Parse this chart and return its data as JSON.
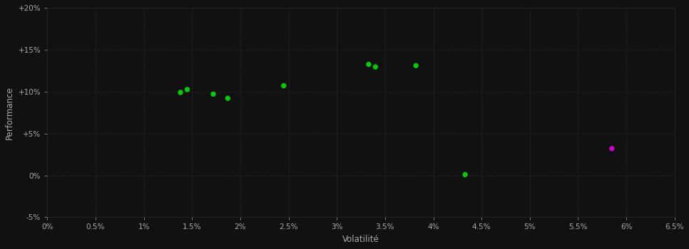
{
  "green_points": [
    [
      0.0138,
      0.099
    ],
    [
      0.0145,
      0.1025
    ],
    [
      0.0172,
      0.097
    ],
    [
      0.0187,
      0.092
    ],
    [
      0.0245,
      0.107
    ],
    [
      0.0333,
      0.1325
    ],
    [
      0.034,
      0.1295
    ],
    [
      0.0382,
      0.131
    ],
    [
      0.0433,
      0.001
    ]
  ],
  "magenta_points": [
    [
      0.0585,
      0.032
    ]
  ],
  "xlim": [
    0.0,
    0.065
  ],
  "ylim": [
    -0.05,
    0.2
  ],
  "xticks": [
    0.0,
    0.005,
    0.01,
    0.015,
    0.02,
    0.025,
    0.03,
    0.035,
    0.04,
    0.045,
    0.05,
    0.055,
    0.06,
    0.065
  ],
  "yticks": [
    -0.05,
    0.0,
    0.05,
    0.1,
    0.15,
    0.2
  ],
  "ytick_labels": [
    "-5%",
    "0%",
    "+5%",
    "+10%",
    "+15%",
    "+20%"
  ],
  "xtick_labels": [
    "0%",
    "0.5%",
    "1%",
    "1.5%",
    "2%",
    "2.5%",
    "3%",
    "3.5%",
    "4%",
    "4.5%",
    "5%",
    "5.5%",
    "6%",
    "6.5%"
  ],
  "xlabel": "Volatilité",
  "ylabel": "Performance",
  "background_color": "#111111",
  "plot_bg_color": "#111111",
  "grid_color": "#2a2a2a",
  "green_color": "#00cc00",
  "magenta_color": "#cc00cc",
  "tick_color": "#aaaaaa",
  "label_color": "#aaaaaa",
  "marker_size": 28
}
